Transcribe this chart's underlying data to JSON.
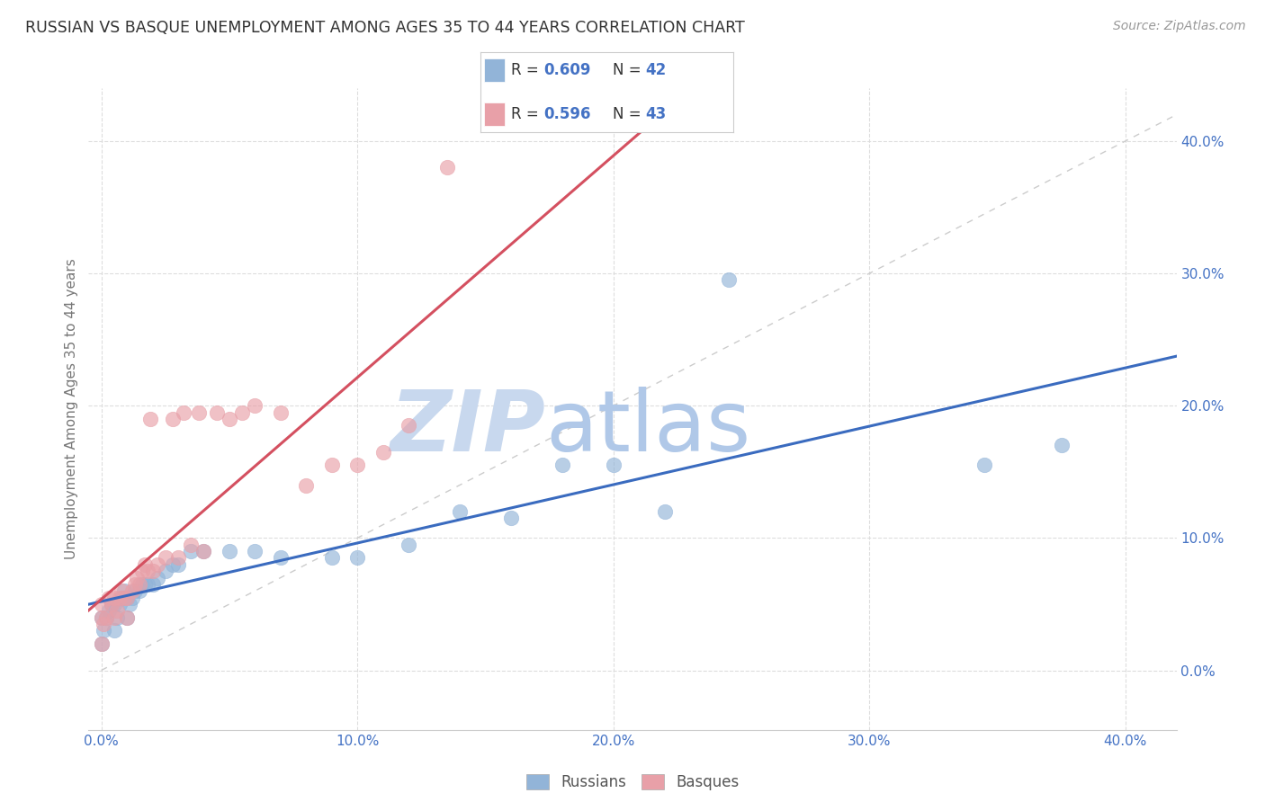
{
  "title": "RUSSIAN VS BASQUE UNEMPLOYMENT AMONG AGES 35 TO 44 YEARS CORRELATION CHART",
  "source": "Source: ZipAtlas.com",
  "ylabel": "Unemployment Among Ages 35 to 44 years",
  "xlim": [
    -0.005,
    0.42
  ],
  "ylim": [
    -0.045,
    0.44
  ],
  "r_russian": 0.609,
  "n_russian": 42,
  "r_basque": 0.596,
  "n_basque": 43,
  "russian_color": "#92b4d8",
  "basque_color": "#e8a0a8",
  "russian_line_color": "#3a6bbf",
  "basque_line_color": "#d45060",
  "identity_line_color": "#cccccc",
  "background_color": "#ffffff",
  "grid_color": "#dddddd",
  "tick_color": "#4472c4",
  "ylabel_color": "#777777",
  "title_color": "#333333",
  "source_color": "#999999",
  "legend_text_color": "#333333",
  "legend_value_color": "#4472c4",
  "watermark_zip_color": "#c8d8ee",
  "watermark_atlas_color": "#b0c8e8",
  "russians_x": [
    0.0,
    0.0,
    0.001,
    0.002,
    0.003,
    0.004,
    0.005,
    0.005,
    0.006,
    0.007,
    0.008,
    0.009,
    0.01,
    0.01,
    0.011,
    0.012,
    0.013,
    0.015,
    0.016,
    0.017,
    0.018,
    0.02,
    0.022,
    0.025,
    0.028,
    0.03,
    0.035,
    0.04,
    0.05,
    0.06,
    0.07,
    0.09,
    0.1,
    0.12,
    0.14,
    0.16,
    0.18,
    0.2,
    0.22,
    0.245,
    0.345,
    0.375
  ],
  "russians_y": [
    0.02,
    0.04,
    0.03,
    0.04,
    0.045,
    0.05,
    0.03,
    0.05,
    0.04,
    0.05,
    0.055,
    0.06,
    0.04,
    0.055,
    0.05,
    0.055,
    0.06,
    0.06,
    0.065,
    0.065,
    0.065,
    0.065,
    0.07,
    0.075,
    0.08,
    0.08,
    0.09,
    0.09,
    0.09,
    0.09,
    0.085,
    0.085,
    0.085,
    0.095,
    0.12,
    0.115,
    0.155,
    0.155,
    0.12,
    0.295,
    0.155,
    0.17
  ],
  "basques_x": [
    0.0,
    0.0,
    0.0,
    0.001,
    0.002,
    0.003,
    0.004,
    0.005,
    0.005,
    0.006,
    0.007,
    0.008,
    0.009,
    0.01,
    0.01,
    0.012,
    0.013,
    0.014,
    0.015,
    0.016,
    0.017,
    0.018,
    0.019,
    0.02,
    0.022,
    0.025,
    0.028,
    0.03,
    0.032,
    0.035,
    0.038,
    0.04,
    0.045,
    0.05,
    0.055,
    0.06,
    0.07,
    0.08,
    0.09,
    0.1,
    0.11,
    0.12,
    0.135
  ],
  "basques_y": [
    0.02,
    0.04,
    0.05,
    0.035,
    0.04,
    0.055,
    0.05,
    0.04,
    0.055,
    0.045,
    0.055,
    0.06,
    0.055,
    0.04,
    0.055,
    0.06,
    0.065,
    0.07,
    0.065,
    0.075,
    0.08,
    0.075,
    0.19,
    0.075,
    0.08,
    0.085,
    0.19,
    0.085,
    0.195,
    0.095,
    0.195,
    0.09,
    0.195,
    0.19,
    0.195,
    0.2,
    0.195,
    0.14,
    0.155,
    0.155,
    0.165,
    0.185,
    0.38
  ]
}
